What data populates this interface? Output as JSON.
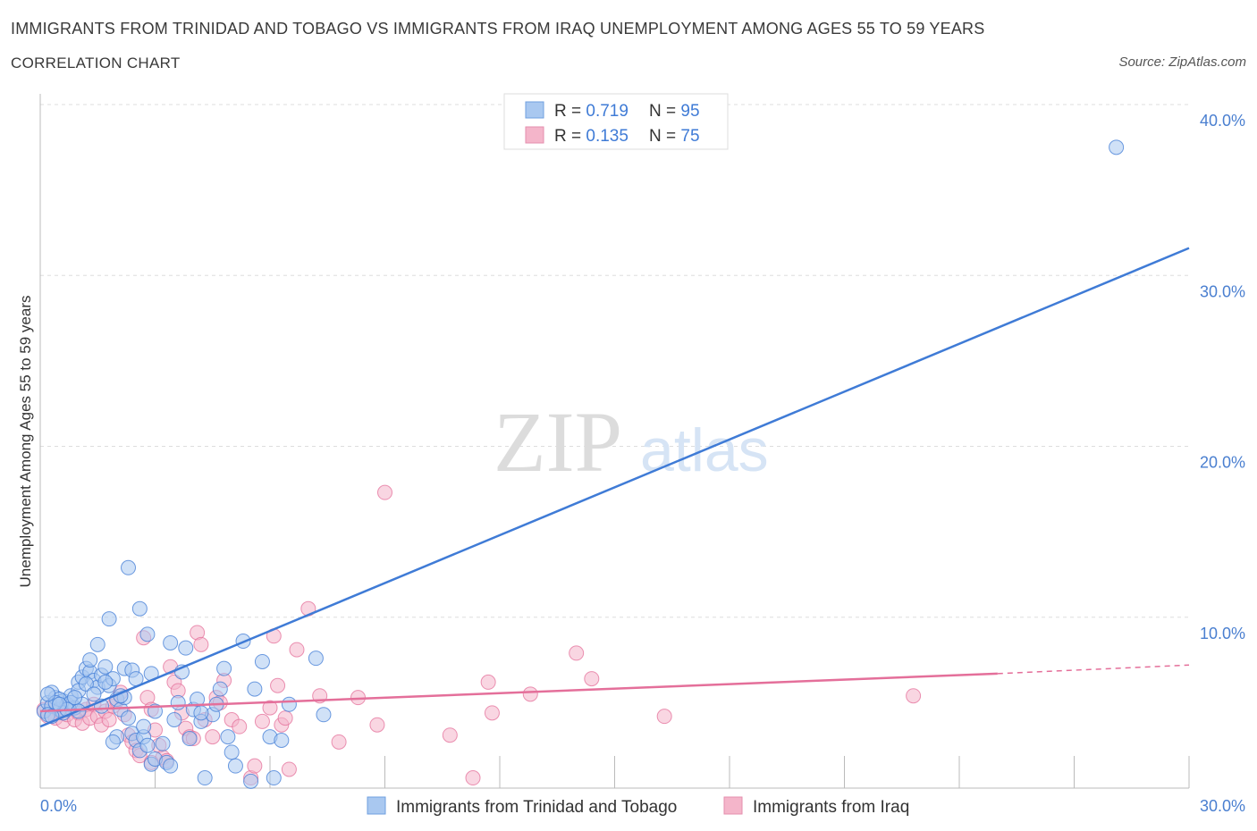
{
  "header": {
    "title": "IMMIGRANTS FROM TRINIDAD AND TOBAGO VS IMMIGRANTS FROM IRAQ UNEMPLOYMENT AMONG AGES 55 TO 59 YEARS",
    "subtitle": "CORRELATION CHART",
    "source": "Source: ZipAtlas.com"
  },
  "watermark": {
    "zip": "ZIP",
    "atlas": "atlas"
  },
  "legend_top": {
    "rows": [
      {
        "r_label": "R = ",
        "r_value": "0.719",
        "n_label": "N = ",
        "n_value": "95"
      },
      {
        "r_label": "R = ",
        "r_value": "0.135",
        "n_label": "N = ",
        "n_value": "75"
      }
    ]
  },
  "colors": {
    "blue": "#3f7bd6",
    "blue_fill": "#a9c8f0",
    "pink": "#e46f9a",
    "pink_fill": "#f4b5ca",
    "tick": "#4a7fd0",
    "grid": "#dddddd"
  },
  "chart_data": {
    "type": "scatter",
    "title": "IMMIGRANTS FROM TRINIDAD AND TOBAGO VS IMMIGRANTS FROM IRAQ UNEMPLOYMENT AMONG AGES 55 TO 59 YEARS",
    "xlabel": "",
    "ylabel": "Unemployment Among Ages 55 to 59 years",
    "xlim": [
      0,
      30
    ],
    "ylim": [
      0,
      40
    ],
    "x_ticks": [
      "0.0%",
      "30.0%"
    ],
    "y_ticks": [
      "10.0%",
      "20.0%",
      "30.0%",
      "40.0%"
    ],
    "y_tick_values": [
      10,
      20,
      30,
      40
    ],
    "grid": true,
    "legend_position": "top-center",
    "series": [
      {
        "name": "Immigrants from Trinidad and Tobago",
        "color": "blue",
        "R": 0.719,
        "N": 95,
        "trend": {
          "x0": 0,
          "y0": 3.6,
          "x1": 30,
          "y1": 31.6
        },
        "points": [
          [
            0.1,
            4.5
          ],
          [
            0.2,
            5.0
          ],
          [
            0.3,
            4.8
          ],
          [
            0.4,
            5.3
          ],
          [
            0.5,
            4.6
          ],
          [
            0.6,
            5.1
          ],
          [
            0.7,
            4.9
          ],
          [
            0.8,
            5.4
          ],
          [
            0.9,
            4.7
          ],
          [
            1.0,
            6.2
          ],
          [
            1.1,
            6.5
          ],
          [
            1.2,
            7.0
          ],
          [
            1.3,
            6.8
          ],
          [
            1.4,
            6.3
          ],
          [
            1.5,
            5.9
          ],
          [
            1.6,
            6.6
          ],
          [
            1.7,
            7.1
          ],
          [
            1.8,
            6.0
          ],
          [
            1.9,
            6.4
          ],
          [
            2.0,
            5.2
          ],
          [
            0.2,
            4.3
          ],
          [
            0.3,
            5.6
          ],
          [
            0.5,
            5.2
          ],
          [
            0.6,
            4.4
          ],
          [
            0.8,
            5.0
          ],
          [
            1.0,
            5.7
          ],
          [
            1.2,
            6.1
          ],
          [
            1.3,
            7.5
          ],
          [
            1.5,
            8.4
          ],
          [
            1.8,
            9.9
          ],
          [
            2.1,
            4.6
          ],
          [
            2.2,
            5.3
          ],
          [
            2.3,
            4.1
          ],
          [
            2.4,
            3.2
          ],
          [
            2.5,
            2.8
          ],
          [
            2.6,
            2.2
          ],
          [
            2.7,
            3.0
          ],
          [
            2.8,
            2.5
          ],
          [
            2.9,
            1.4
          ],
          [
            3.0,
            1.7
          ],
          [
            3.2,
            2.6
          ],
          [
            3.3,
            1.5
          ],
          [
            3.4,
            1.3
          ],
          [
            3.5,
            4.0
          ],
          [
            3.6,
            5.0
          ],
          [
            3.7,
            6.8
          ],
          [
            3.8,
            8.2
          ],
          [
            3.9,
            2.9
          ],
          [
            4.0,
            4.6
          ],
          [
            4.1,
            5.2
          ],
          [
            4.2,
            3.9
          ],
          [
            4.3,
            0.6
          ],
          [
            4.5,
            4.3
          ],
          [
            4.6,
            4.9
          ],
          [
            4.7,
            5.8
          ],
          [
            4.8,
            7.0
          ],
          [
            4.9,
            3.0
          ],
          [
            5.0,
            2.1
          ],
          [
            5.1,
            1.3
          ],
          [
            5.3,
            8.6
          ],
          [
            5.5,
            0.4
          ],
          [
            5.6,
            5.8
          ],
          [
            5.8,
            7.4
          ],
          [
            6.0,
            3.0
          ],
          [
            6.1,
            0.6
          ],
          [
            6.3,
            2.8
          ],
          [
            6.5,
            4.9
          ],
          [
            7.2,
            7.6
          ],
          [
            7.4,
            4.3
          ],
          [
            2.6,
            10.5
          ],
          [
            2.3,
            12.9
          ],
          [
            2.8,
            9.0
          ],
          [
            2.9,
            6.7
          ],
          [
            2.2,
            7.0
          ],
          [
            1.7,
            6.2
          ],
          [
            1.4,
            5.5
          ],
          [
            1.1,
            4.9
          ],
          [
            0.9,
            5.3
          ],
          [
            0.7,
            4.6
          ],
          [
            0.4,
            5.0
          ],
          [
            2.0,
            3.0
          ],
          [
            2.4,
            6.9
          ],
          [
            2.1,
            5.4
          ],
          [
            2.5,
            6.4
          ],
          [
            3.0,
            4.5
          ],
          [
            1.6,
            4.8
          ],
          [
            0.2,
            5.5
          ],
          [
            0.5,
            4.9
          ],
          [
            1.0,
            4.5
          ],
          [
            1.9,
            2.7
          ],
          [
            2.7,
            3.6
          ],
          [
            3.4,
            8.5
          ],
          [
            4.2,
            4.4
          ],
          [
            0.3,
            4.2
          ],
          [
            28.1,
            37.5
          ]
        ]
      },
      {
        "name": "Immigrants from Iraq",
        "color": "pink",
        "R": 0.135,
        "N": 75,
        "trend": {
          "x0": 0,
          "y0": 4.5,
          "x1": 25,
          "y1": 6.7
        },
        "trend_dash": {
          "x0": 25,
          "y0": 6.7,
          "x1": 30,
          "y1": 7.2
        },
        "points": [
          [
            0.1,
            4.6
          ],
          [
            0.2,
            4.2
          ],
          [
            0.3,
            4.8
          ],
          [
            0.4,
            4.1
          ],
          [
            0.5,
            4.5
          ],
          [
            0.6,
            3.9
          ],
          [
            0.7,
            4.3
          ],
          [
            0.8,
            4.7
          ],
          [
            0.9,
            4.0
          ],
          [
            1.0,
            4.4
          ],
          [
            1.1,
            3.8
          ],
          [
            1.2,
            4.6
          ],
          [
            1.3,
            4.1
          ],
          [
            1.4,
            4.9
          ],
          [
            1.5,
            4.2
          ],
          [
            1.6,
            3.7
          ],
          [
            1.7,
            4.5
          ],
          [
            1.8,
            4.0
          ],
          [
            1.9,
            4.8
          ],
          [
            2.0,
            5.1
          ],
          [
            2.1,
            5.6
          ],
          [
            2.2,
            4.3
          ],
          [
            2.3,
            3.1
          ],
          [
            2.4,
            2.7
          ],
          [
            2.5,
            2.2
          ],
          [
            2.6,
            1.9
          ],
          [
            2.7,
            8.8
          ],
          [
            2.8,
            5.3
          ],
          [
            2.9,
            4.6
          ],
          [
            3.0,
            3.4
          ],
          [
            3.1,
            2.5
          ],
          [
            3.2,
            1.8
          ],
          [
            3.3,
            1.6
          ],
          [
            3.4,
            7.1
          ],
          [
            3.5,
            6.2
          ],
          [
            3.6,
            5.7
          ],
          [
            3.7,
            4.4
          ],
          [
            3.8,
            3.5
          ],
          [
            3.9,
            3.0
          ],
          [
            4.0,
            2.9
          ],
          [
            4.1,
            9.1
          ],
          [
            4.2,
            8.4
          ],
          [
            4.3,
            4.0
          ],
          [
            4.5,
            3.0
          ],
          [
            4.6,
            5.3
          ],
          [
            4.7,
            5.0
          ],
          [
            4.8,
            6.3
          ],
          [
            5.0,
            4.0
          ],
          [
            5.2,
            3.6
          ],
          [
            5.5,
            0.6
          ],
          [
            5.6,
            1.3
          ],
          [
            5.8,
            3.9
          ],
          [
            6.0,
            4.7
          ],
          [
            6.1,
            8.9
          ],
          [
            6.2,
            6.0
          ],
          [
            6.3,
            3.7
          ],
          [
            6.4,
            4.1
          ],
          [
            6.5,
            1.1
          ],
          [
            6.7,
            8.1
          ],
          [
            7.0,
            10.5
          ],
          [
            7.3,
            5.4
          ],
          [
            7.8,
            2.7
          ],
          [
            8.3,
            5.3
          ],
          [
            8.8,
            3.7
          ],
          [
            9.0,
            17.3
          ],
          [
            10.7,
            3.1
          ],
          [
            11.3,
            0.6
          ],
          [
            11.7,
            6.2
          ],
          [
            11.8,
            4.4
          ],
          [
            12.8,
            5.5
          ],
          [
            14.0,
            7.9
          ],
          [
            14.4,
            6.4
          ],
          [
            16.3,
            4.2
          ],
          [
            22.8,
            5.4
          ],
          [
            2.9,
            1.5
          ]
        ]
      }
    ]
  },
  "legend_bottom": {
    "items": [
      {
        "label": "Immigrants from Trinidad and Tobago",
        "color": "blue"
      },
      {
        "label": "Immigrants from Iraq",
        "color": "pink"
      }
    ]
  }
}
